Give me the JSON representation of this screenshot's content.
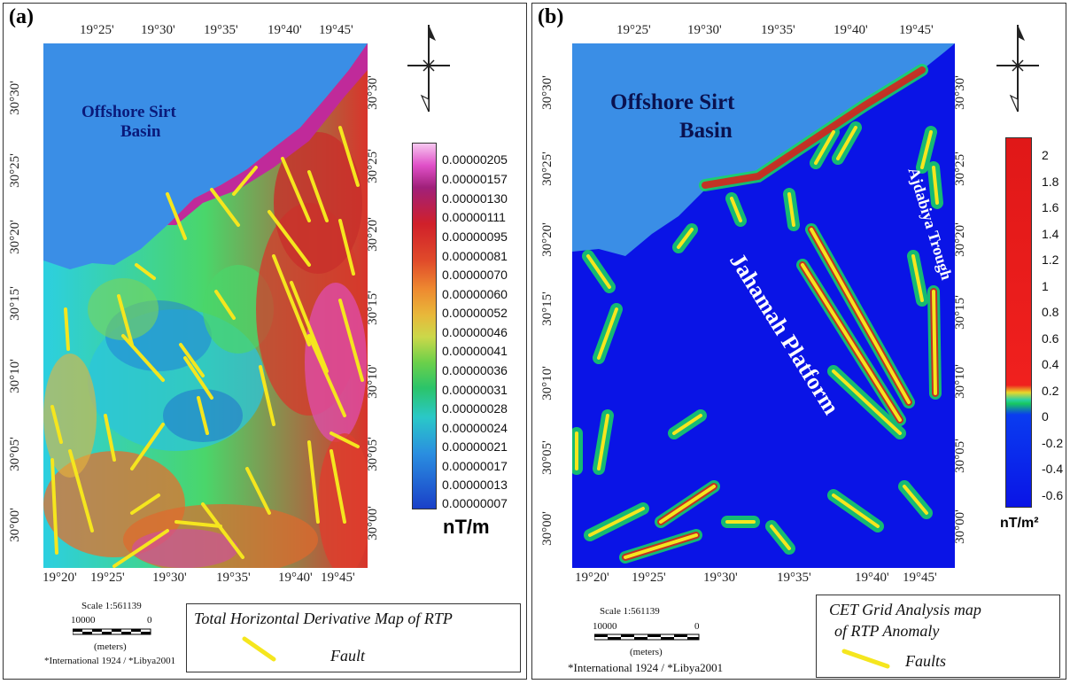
{
  "panel_a": {
    "label": "(a)",
    "lon_ticks_top": [
      "19°25'",
      "19°30'",
      "19°35'",
      "19°40'",
      "19°45'"
    ],
    "lon_ticks_bottom": [
      "19°20'",
      "19°25'",
      "19°30'",
      "19°35'",
      "19°40'",
      "19°45'"
    ],
    "lat_ticks_left": [
      "30°30'",
      "30°25'",
      "30°20'",
      "30°15'",
      "30°10'",
      "30°05'",
      "30°00'"
    ],
    "lat_ticks_right": [
      "30°30'",
      "30°25'",
      "30°20'",
      "30°15'",
      "30°10'",
      "30°05'",
      "30°00'"
    ],
    "area_label_line1": "Offshore Sirt",
    "area_label_line2": "Basin",
    "colorbar_values": [
      "0.00000205",
      "0.00000157",
      "0.00000130",
      "0.00000111",
      "0.00000095",
      "0.00000081",
      "0.00000070",
      "0.00000060",
      "0.00000052",
      "0.00000046",
      "0.00000041",
      "0.00000036",
      "0.00000031",
      "0.00000028",
      "0.00000024",
      "0.00000021",
      "0.00000017",
      "0.00000013",
      "0.00000007"
    ],
    "colorbar_unit": "nT/m",
    "scale_title": "Scale 1:561139",
    "scale_left": "10000",
    "scale_right": "0",
    "scale_unit": "(meters)",
    "datum": "*International 1924 / *Libya2001",
    "legend_title": "Total Horizontal Derivative Map of RTP",
    "legend_item": "Fault"
  },
  "panel_b": {
    "label": "(b)",
    "lon_ticks_top": [
      "19°25'",
      "19°30'",
      "19°35'",
      "19°40'",
      "19°45'"
    ],
    "lon_ticks_bottom": [
      "19°20'",
      "19°25'",
      "19°30'",
      "19°35'",
      "19°40'",
      "19°45'"
    ],
    "lat_ticks_left": [
      "30°30'",
      "30°25'",
      "30°20'",
      "30°15'",
      "30°10'",
      "30°05'",
      "30°00'"
    ],
    "lat_ticks_right": [
      "30°30'",
      "30°25'",
      "30°20'",
      "30°15'",
      "30°10'",
      "30°05'",
      "30°00'"
    ],
    "area_label_line1": "Offshore Sirt",
    "area_label_line2": "Basin",
    "platform_label": "Jahamah Platform",
    "trough_label": "Ajdabiya Trough",
    "colorbar_values": [
      "2",
      "1.8",
      "1.6",
      "1.4",
      "1.2",
      "1",
      "0.8",
      "0.6",
      "0.4",
      "0.2",
      "0",
      "-0.2",
      "-0.4",
      "-0.6"
    ],
    "colorbar_unit": "nT/m²",
    "scale_title": "Scale 1:561139",
    "scale_left": "10000",
    "scale_right": "0",
    "scale_unit": "(meters)",
    "datum": "*International 1924 / *Libya2001",
    "legend_title_line1": "CET Grid Analysis map",
    "legend_title_line2": "of RTP Anomaly",
    "legend_item": "Faults"
  },
  "colors": {
    "sea": "#3a8ee6",
    "fault": "#f5e61e",
    "cet_background": "#0a14e6"
  }
}
